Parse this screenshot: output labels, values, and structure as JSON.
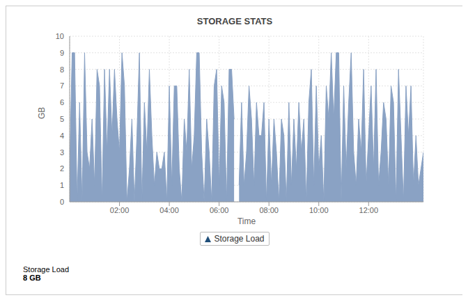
{
  "chart_data": {
    "type": "area",
    "title": "STORAGE STATS",
    "x_label": "Time",
    "y_label": "GB",
    "x": [
      0,
      0.1,
      0.2,
      0.3,
      0.4,
      0.5,
      0.6,
      0.7,
      0.8,
      0.9,
      1,
      1.1,
      1.2,
      1.3,
      1.4,
      1.5,
      1.6,
      1.7,
      1.8,
      1.9,
      2,
      2.1,
      2.2,
      2.3,
      2.4,
      2.5,
      2.6,
      2.7,
      2.8,
      2.9,
      3,
      3.1,
      3.2,
      3.3,
      3.4,
      3.5,
      3.6,
      3.7,
      3.8,
      3.9,
      4,
      4.1,
      4.2,
      4.3,
      4.4,
      4.5,
      4.6,
      4.7,
      4.8,
      4.9,
      5,
      5.1,
      5.2,
      5.3,
      5.4,
      5.5,
      5.6,
      5.7,
      5.8,
      5.9,
      6,
      6.1,
      6.2,
      6.3,
      6.4,
      6.5,
      6.6,
      6.7,
      6.8,
      6.9,
      7,
      7.1,
      7.2,
      7.3,
      7.4,
      7.5,
      7.6,
      7.7,
      7.8,
      7.9,
      8,
      8.1,
      8.2,
      8.3,
      8.4,
      8.5,
      8.6,
      8.7,
      8.8,
      8.9,
      9,
      9.1,
      9.2,
      9.3,
      9.4,
      9.5,
      9.6,
      9.7,
      9.8,
      9.9,
      10,
      10.1,
      10.2,
      10.3,
      10.4,
      10.5,
      10.6,
      10.7,
      10.8,
      10.9,
      11,
      11.1,
      11.2,
      11.3,
      11.4,
      11.5,
      11.6,
      11.7,
      11.8,
      11.9,
      12,
      12.1,
      12.2,
      12.3,
      12.4,
      12.5,
      12.6,
      12.7,
      12.8,
      12.9,
      13,
      13.1,
      13.2,
      13.3,
      13.4,
      13.5,
      13.6,
      13.7,
      13.8,
      13.9,
      14,
      14.1,
      14.2
    ],
    "series": [
      {
        "name": "Storage Load",
        "color": "#8aa2c4",
        "values": [
          2,
          9,
          9,
          0,
          6,
          0,
          9,
          3,
          2,
          5,
          1,
          8,
          7,
          0,
          8,
          3,
          8,
          4,
          8,
          5,
          3,
          9,
          7,
          0,
          2,
          5,
          0,
          4,
          9,
          0,
          6,
          3,
          8,
          4,
          1,
          3,
          2,
          2,
          3,
          0,
          7,
          1,
          7,
          7,
          2,
          0,
          5,
          3,
          8,
          2,
          4,
          9,
          9,
          3,
          0,
          5,
          3,
          0,
          7,
          8,
          1,
          7,
          6,
          0,
          8,
          8,
          5,
          null,
          1,
          6,
          1,
          3,
          7,
          5,
          1,
          6,
          4,
          4,
          6,
          0,
          5,
          1,
          5,
          3,
          0,
          5,
          4,
          0,
          6,
          1,
          5,
          2,
          6,
          3,
          5,
          0,
          6,
          8,
          1,
          7,
          2,
          4,
          0,
          7,
          5,
          9,
          5,
          9,
          9,
          0,
          7,
          2,
          6,
          9,
          3,
          1,
          5,
          3,
          8,
          1,
          4,
          7,
          2,
          8,
          1,
          3,
          6,
          5,
          1,
          7,
          6,
          0,
          8,
          4,
          0,
          7,
          4,
          7,
          1,
          4,
          1,
          2,
          3
        ]
      }
    ],
    "xlim": [
      0,
      14.2
    ],
    "xticks": [
      {
        "value": 2,
        "label": "02:00"
      },
      {
        "value": 4,
        "label": "04:00"
      },
      {
        "value": 6,
        "label": "06:00"
      },
      {
        "value": 8,
        "label": "08:00"
      },
      {
        "value": 10,
        "label": "10:00"
      },
      {
        "value": 12,
        "label": "12:00"
      }
    ],
    "ylim": [
      0,
      10
    ],
    "yticks": [
      0,
      1,
      2,
      3,
      4,
      5,
      6,
      7,
      8,
      9,
      10
    ],
    "grid": true,
    "legend": "bottom",
    "annotations": [
      {
        "label": "Storage Load",
        "text": "8 GB"
      }
    ]
  }
}
